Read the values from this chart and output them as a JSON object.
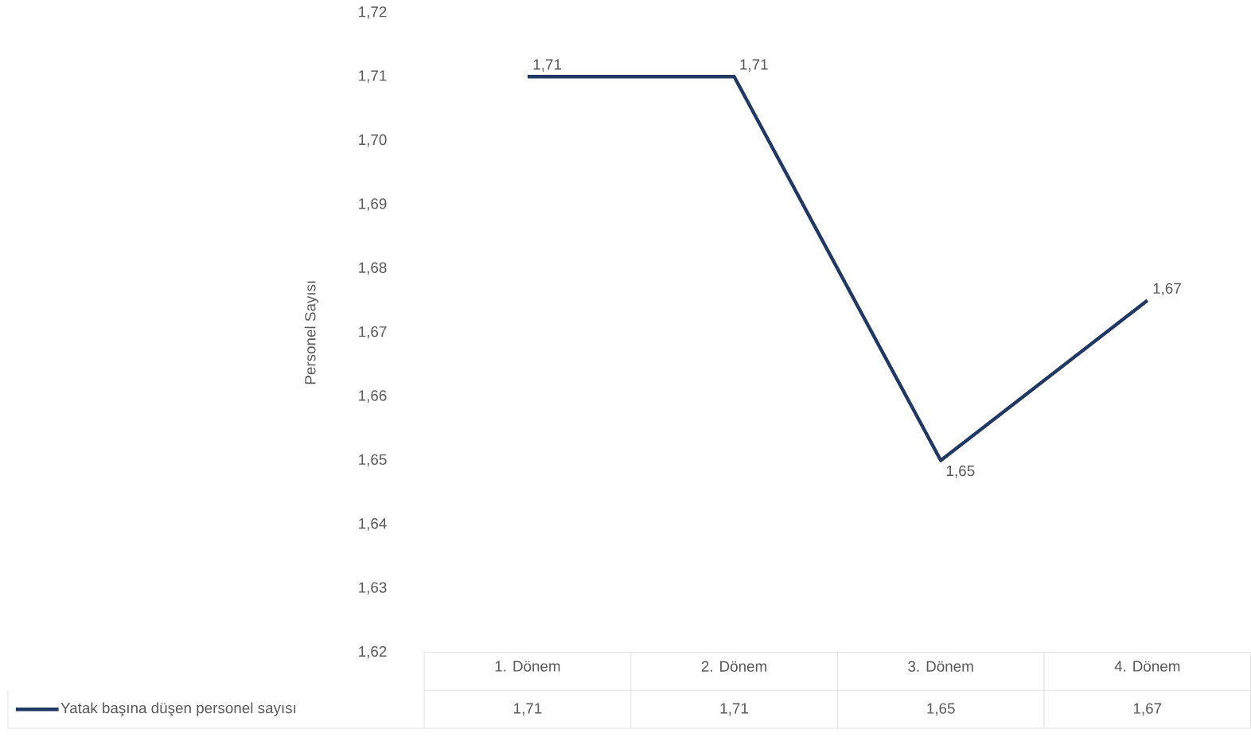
{
  "chart_data": {
    "type": "line",
    "ylabel": "Personel Sayısı",
    "categories": [
      "1. Dönem",
      "2. Dönem",
      "3. Dönem",
      "4. Dönem"
    ],
    "series": [
      {
        "name": "Yatak başına düşen personel sayısı",
        "color": "#203864",
        "values": [
          1.71,
          1.71,
          1.65,
          1.675
        ],
        "value_labels": [
          "1,71",
          "1,71",
          "1,65",
          "1,67"
        ]
      }
    ],
    "ylim": [
      1.62,
      1.72
    ],
    "yticks": [
      {
        "value": 1.62,
        "label": "1,62"
      },
      {
        "value": 1.63,
        "label": "1,63"
      },
      {
        "value": 1.64,
        "label": "1,64"
      },
      {
        "value": 1.65,
        "label": "1,65"
      },
      {
        "value": 1.66,
        "label": "1,66"
      },
      {
        "value": 1.67,
        "label": "1,67"
      },
      {
        "value": 1.68,
        "label": "1,68"
      },
      {
        "value": 1.69,
        "label": "1,69"
      },
      {
        "value": 1.7,
        "label": "1,70"
      },
      {
        "value": 1.71,
        "label": "1,71"
      },
      {
        "value": 1.72,
        "label": "1,72"
      }
    ],
    "grid": false,
    "legend": "bottom",
    "marker": "none",
    "line_style": "solid"
  }
}
